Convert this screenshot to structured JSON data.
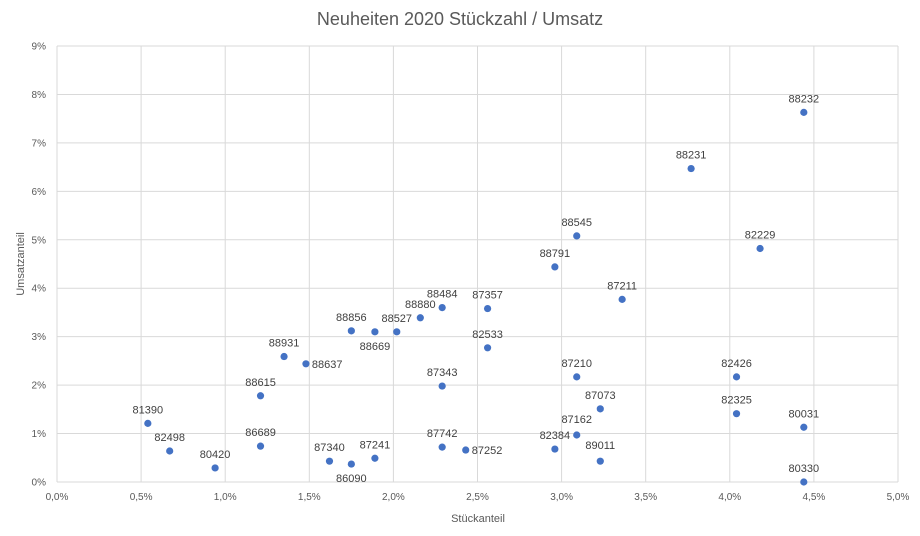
{
  "chart_data": {
    "type": "scatter",
    "title": "Neuheiten 2020 Stückzahl / Umsatz",
    "xlabel": "Stückanteil",
    "ylabel": "Umsatzanteil",
    "xlim": [
      0,
      5
    ],
    "ylim": [
      0,
      9
    ],
    "x_ticks": [
      "0,0%",
      "0,5%",
      "1,0%",
      "1,5%",
      "2,0%",
      "2,5%",
      "3,0%",
      "3,5%",
      "4,0%",
      "4,5%",
      "5,0%"
    ],
    "y_ticks": [
      "0%",
      "1%",
      "2%",
      "3%",
      "4%",
      "5%",
      "6%",
      "7%",
      "8%",
      "9%"
    ],
    "grid": true,
    "marker_color": "#4472c4",
    "points": [
      {
        "label": "88232",
        "x": 4.44,
        "y": 7.63
      },
      {
        "label": "88231",
        "x": 3.77,
        "y": 6.47
      },
      {
        "label": "88545",
        "x": 3.09,
        "y": 5.08
      },
      {
        "label": "82229",
        "x": 4.18,
        "y": 4.82
      },
      {
        "label": "88791",
        "x": 2.96,
        "y": 4.44
      },
      {
        "label": "87211",
        "x": 3.36,
        "y": 3.77
      },
      {
        "label": "88484",
        "x": 2.29,
        "y": 3.6
      },
      {
        "label": "87357",
        "x": 2.56,
        "y": 3.58
      },
      {
        "label": "88880",
        "x": 2.16,
        "y": 3.39
      },
      {
        "label": "88856",
        "x": 1.75,
        "y": 3.12
      },
      {
        "label": "88527",
        "x": 2.02,
        "y": 3.1
      },
      {
        "label": "88669",
        "x": 1.89,
        "y": 3.1
      },
      {
        "label": "82533",
        "x": 2.56,
        "y": 2.77
      },
      {
        "label": "88931",
        "x": 1.35,
        "y": 2.59
      },
      {
        "label": "88637",
        "x": 1.48,
        "y": 2.44
      },
      {
        "label": "87210",
        "x": 3.09,
        "y": 2.17
      },
      {
        "label": "82426",
        "x": 4.04,
        "y": 2.17
      },
      {
        "label": "87343",
        "x": 2.29,
        "y": 1.98
      },
      {
        "label": "88615",
        "x": 1.21,
        "y": 1.78
      },
      {
        "label": "87073",
        "x": 3.23,
        "y": 1.51
      },
      {
        "label": "82325",
        "x": 4.04,
        "y": 1.41
      },
      {
        "label": "81390",
        "x": 0.54,
        "y": 1.21
      },
      {
        "label": "80031",
        "x": 4.44,
        "y": 1.13
      },
      {
        "label": "87162",
        "x": 3.09,
        "y": 0.97
      },
      {
        "label": "86689",
        "x": 1.21,
        "y": 0.74
      },
      {
        "label": "87742",
        "x": 2.29,
        "y": 0.72
      },
      {
        "label": "82384",
        "x": 2.96,
        "y": 0.68
      },
      {
        "label": "87252",
        "x": 2.43,
        "y": 0.66
      },
      {
        "label": "82498",
        "x": 0.67,
        "y": 0.64
      },
      {
        "label": "87241",
        "x": 1.89,
        "y": 0.49
      },
      {
        "label": "87340",
        "x": 1.62,
        "y": 0.43
      },
      {
        "label": "89011",
        "x": 3.23,
        "y": 0.43
      },
      {
        "label": "86090",
        "x": 1.75,
        "y": 0.37
      },
      {
        "label": "80420",
        "x": 0.94,
        "y": 0.29
      },
      {
        "label": "80330",
        "x": 4.44,
        "y": 0.0
      }
    ]
  }
}
